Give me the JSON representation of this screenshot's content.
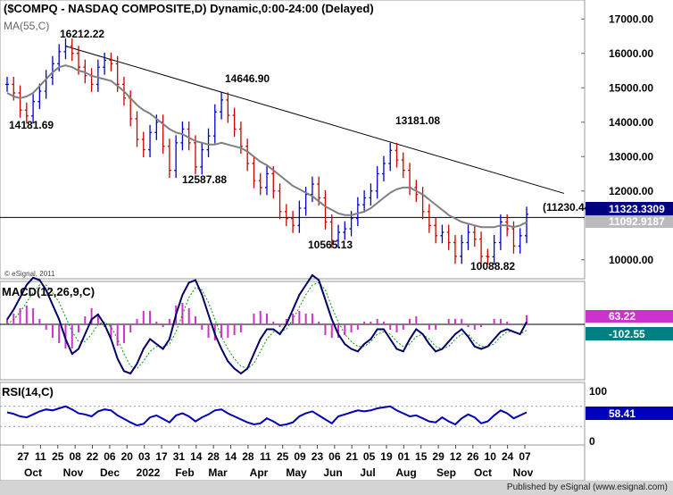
{
  "chart_data": {
    "type": "ohlc",
    "title": "($COMPQ - NASDAQ COMPOSITE,D) Dynamic,0:00-24:00 (Delayed)",
    "copyright": "© eSignal, 2011",
    "price_panel": {
      "ma_label": "MA(55,C)",
      "ylim": [
        9500,
        17500
      ],
      "y_ticks": [
        "17000.00",
        "16000.00",
        "15000.00",
        "14000.00",
        "13000.00",
        "12000.00",
        "10000.00"
      ],
      "last_value": "11323.3309",
      "ma_value": "11092.9187",
      "horizontal_level": {
        "value": 11230.44,
        "label": "(11230.44)"
      },
      "annotations": [
        {
          "label": "16212.22",
          "value": 16212.22
        },
        {
          "label": "14181.69",
          "value": 14181.69
        },
        {
          "label": "14646.90",
          "value": 14646.9
        },
        {
          "label": "12587.88",
          "value": 12587.88
        },
        {
          "label": "13181.08",
          "value": 13181.08
        },
        {
          "label": "10565.13",
          "value": 10565.13
        },
        {
          "label": "10088.82",
          "value": 10088.82
        }
      ],
      "close_series": [
        15100,
        14850,
        14350,
        14180,
        14600,
        14900,
        15300,
        15700,
        16050,
        16212,
        16000,
        15600,
        15350,
        15100,
        15600,
        15800,
        15700,
        15100,
        14700,
        14100,
        13500,
        13200,
        13700,
        14000,
        13300,
        12600,
        13400,
        13800,
        13400,
        12700,
        13200,
        13600,
        14300,
        14646,
        14200,
        13800,
        13300,
        12800,
        12300,
        12100,
        12500,
        12000,
        11400,
        11200,
        11000,
        11500,
        11900,
        12200,
        11800,
        11100,
        10565,
        10800,
        10900,
        11200,
        11600,
        11800,
        12000,
        12500,
        12800,
        13181,
        12900,
        12600,
        12100,
        11900,
        11400,
        11000,
        10700,
        10800,
        10500,
        10100,
        10500,
        10800,
        10600,
        10100,
        10088,
        10500,
        11100,
        10900,
        10400,
        10700,
        11323
      ],
      "ma_series": [
        14850,
        14750,
        14700,
        14750,
        14850,
        15050,
        15250,
        15450,
        15600,
        15650,
        15600,
        15500,
        15450,
        15350,
        15300,
        15250,
        15200,
        15050,
        14900,
        14700,
        14500,
        14350,
        14250,
        14100,
        13950,
        13800,
        13700,
        13650,
        13550,
        13450,
        13400,
        13350,
        13350,
        13400,
        13350,
        13300,
        13250,
        13150,
        13000,
        12850,
        12750,
        12600,
        12450,
        12300,
        12150,
        12050,
        11950,
        11850,
        11700,
        11550,
        11450,
        11350,
        11300,
        11300,
        11350,
        11400,
        11500,
        11650,
        11800,
        11950,
        12050,
        12100,
        12100,
        12000,
        11900,
        11750,
        11600,
        11450,
        11300,
        11200,
        11100,
        11050,
        11000,
        10950,
        10950,
        10950,
        11000,
        11000,
        10950,
        11000,
        11092
      ]
    },
    "macd_panel": {
      "label": "MACD(12,26,9,C)",
      "value_1": "63.22",
      "value_2": "-102.55",
      "y_ticks": [
        "0.00"
      ],
      "macd_series": [
        0.1,
        0.3,
        0.55,
        0.8,
        0.95,
        0.9,
        0.7,
        0.4,
        0.1,
        -0.3,
        -0.6,
        -0.5,
        -0.2,
        0.1,
        0.2,
        0.0,
        -0.3,
        -0.7,
        -0.95,
        -1.0,
        -0.8,
        -0.5,
        -0.3,
        -0.4,
        -0.5,
        -0.3,
        0.2,
        0.6,
        0.85,
        0.9,
        0.6,
        0.2,
        -0.2,
        -0.5,
        -0.75,
        -0.9,
        -1.0,
        -0.9,
        -0.6,
        -0.3,
        -0.1,
        -0.1,
        -0.2,
        0.0,
        0.3,
        0.6,
        0.8,
        1.0,
        0.9,
        0.5,
        0.1,
        -0.2,
        -0.4,
        -0.5,
        -0.55,
        -0.4,
        -0.3,
        -0.1,
        -0.1,
        -0.3,
        -0.5,
        -0.55,
        -0.3,
        -0.1,
        -0.2,
        -0.4,
        -0.55,
        -0.5,
        -0.35,
        -0.2,
        -0.1,
        -0.25,
        -0.45,
        -0.5,
        -0.45,
        -0.3,
        -0.15,
        -0.1,
        -0.15,
        -0.2,
        0.05
      ],
      "signal_series": [
        0.0,
        0.1,
        0.25,
        0.45,
        0.65,
        0.8,
        0.8,
        0.65,
        0.45,
        0.15,
        -0.15,
        -0.35,
        -0.35,
        -0.2,
        0.0,
        0.05,
        -0.05,
        -0.3,
        -0.6,
        -0.85,
        -0.9,
        -0.75,
        -0.55,
        -0.45,
        -0.45,
        -0.4,
        -0.15,
        0.2,
        0.55,
        0.75,
        0.7,
        0.45,
        0.1,
        -0.25,
        -0.5,
        -0.7,
        -0.85,
        -0.9,
        -0.8,
        -0.55,
        -0.3,
        -0.15,
        -0.15,
        -0.1,
        0.1,
        0.35,
        0.6,
        0.8,
        0.85,
        0.7,
        0.35,
        0.05,
        -0.2,
        -0.35,
        -0.45,
        -0.45,
        -0.35,
        -0.2,
        -0.15,
        -0.2,
        -0.35,
        -0.45,
        -0.4,
        -0.25,
        -0.2,
        -0.3,
        -0.45,
        -0.5,
        -0.45,
        -0.3,
        -0.2,
        -0.2,
        -0.35,
        -0.45,
        -0.45,
        -0.4,
        -0.25,
        -0.15,
        -0.15,
        -0.2,
        -0.12
      ]
    },
    "rsi_panel": {
      "label": "RSI(14,C)",
      "value": "58.41",
      "y_ticks": [
        "100",
        "50",
        "0"
      ],
      "ylim": [
        0,
        100
      ],
      "rsi_series": [
        58,
        55,
        50,
        48,
        54,
        60,
        64,
        62,
        66,
        70,
        64,
        56,
        54,
        50,
        60,
        64,
        62,
        52,
        45,
        38,
        32,
        35,
        48,
        52,
        45,
        38,
        52,
        56,
        50,
        40,
        48,
        54,
        62,
        64,
        56,
        50,
        44,
        38,
        34,
        36,
        46,
        40,
        32,
        34,
        38,
        50,
        56,
        60,
        52,
        44,
        36,
        50,
        54,
        58,
        62,
        60,
        62,
        66,
        68,
        70,
        62,
        56,
        50,
        52,
        46,
        40,
        38,
        48,
        40,
        34,
        46,
        54,
        48,
        36,
        40,
        52,
        62,
        56,
        46,
        52,
        58
      ]
    },
    "x_axis": {
      "ticks": [
        "27",
        "11",
        "25",
        "08",
        "22",
        "06",
        "20",
        "03",
        "17",
        "31",
        "14",
        "28",
        "14",
        "28",
        "11",
        "25",
        "09",
        "23",
        "06",
        "21",
        "05",
        "19",
        "01",
        "15",
        "29",
        "12",
        "26",
        "10",
        "24",
        "07"
      ],
      "months": [
        "Oct",
        "Nov",
        "Dec",
        "2022",
        "Feb",
        "Mar",
        "Apr",
        "May",
        "Jun",
        "Jul",
        "Aug",
        "Sep",
        "Oct",
        "Nov"
      ]
    }
  },
  "footer": {
    "text": "Published by eSignal (www.esignal.com)"
  },
  "colors": {
    "up": "#0000cc",
    "down": "#cc0000",
    "ma": "#808080",
    "hist": "#cc33cc",
    "macd": "#000066",
    "signal": "#009900",
    "rsi": "#0000bb",
    "last_bg": "#000080",
    "macd_bg": "#008080"
  }
}
